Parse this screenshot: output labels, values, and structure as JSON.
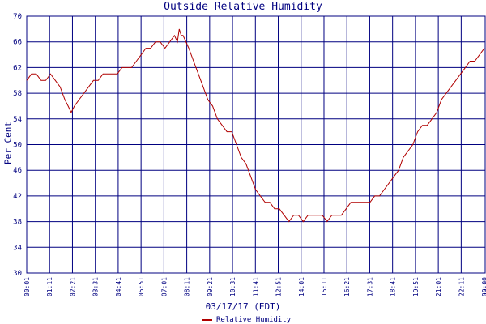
{
  "chart_data": {
    "type": "line",
    "title": "Outside Relative Humidity",
    "ylabel": "Per Cent",
    "xlabel": "03/17/17 (EDT)",
    "ylim": [
      30,
      70
    ],
    "yticks": [
      "70",
      "66",
      "62",
      "58",
      "54",
      "50",
      "46",
      "42",
      "38",
      "34",
      "30"
    ],
    "xticks": [
      "00:01",
      "01:11",
      "02:21",
      "03:31",
      "04:41",
      "05:51",
      "07:01",
      "08:11",
      "09:21",
      "10:31",
      "11:41",
      "12:51",
      "14:01",
      "15:11",
      "16:21",
      "17:31",
      "18:41",
      "19:51",
      "21:01",
      "22:11",
      "00:00",
      "23:21"
    ],
    "grid": true,
    "legend_position": "bottom",
    "colors": {
      "series": "#b00000",
      "axis": "#000080",
      "grid": "#000080"
    },
    "series": [
      {
        "name": "Relative Humidity",
        "x_hours": [
          0,
          0.25,
          0.5,
          0.75,
          1.0,
          1.25,
          1.5,
          1.75,
          2.0,
          2.17,
          2.33,
          2.5,
          2.75,
          3.0,
          3.25,
          3.5,
          3.75,
          4.0,
          4.25,
          4.5,
          4.75,
          5.0,
          5.25,
          5.5,
          5.75,
          6.0,
          6.25,
          6.5,
          6.75,
          7.0,
          7.25,
          7.5,
          7.75,
          7.9,
          8.0,
          8.1,
          8.2,
          8.35,
          8.5,
          8.75,
          9.0,
          9.25,
          9.5,
          9.75,
          10.0,
          10.25,
          10.5,
          10.75,
          11.0,
          11.25,
          11.5,
          11.75,
          12.0,
          12.25,
          12.5,
          12.75,
          13.0,
          13.25,
          13.5,
          13.75,
          14.0,
          14.25,
          14.5,
          14.75,
          15.0,
          15.25,
          15.5,
          15.75,
          16.0,
          16.25,
          16.5,
          16.75,
          17.0,
          17.25,
          17.5,
          17.75,
          18.0,
          18.25,
          18.5,
          18.75,
          19.0,
          19.25,
          19.5,
          19.75,
          20.0,
          20.25,
          20.5,
          20.75,
          21.0,
          21.25,
          21.5,
          21.75,
          22.0,
          22.25,
          22.5,
          22.75,
          23.0,
          23.25,
          23.5,
          23.75,
          24.0
        ],
        "values": [
          60,
          61,
          61,
          60,
          60,
          61,
          60,
          59,
          57,
          56,
          55,
          56,
          57,
          58,
          59,
          60,
          60,
          61,
          61,
          61,
          61,
          62,
          62,
          62,
          63,
          64,
          65,
          65,
          66,
          66,
          65,
          66,
          67,
          66,
          68,
          67,
          67,
          66,
          65,
          63,
          61,
          59,
          57,
          56,
          54,
          53,
          52,
          52,
          50,
          48,
          47,
          45,
          43,
          42,
          41,
          41,
          40,
          40,
          39,
          38,
          39,
          39,
          38,
          39,
          39,
          39,
          39,
          38,
          39,
          39,
          39,
          40,
          41,
          41,
          41,
          41,
          41,
          42,
          42,
          43,
          44,
          45,
          46,
          48,
          49,
          50,
          52,
          53,
          53,
          54,
          55,
          57,
          58,
          59,
          60,
          61,
          62,
          63,
          63,
          64,
          65
        ]
      }
    ]
  }
}
